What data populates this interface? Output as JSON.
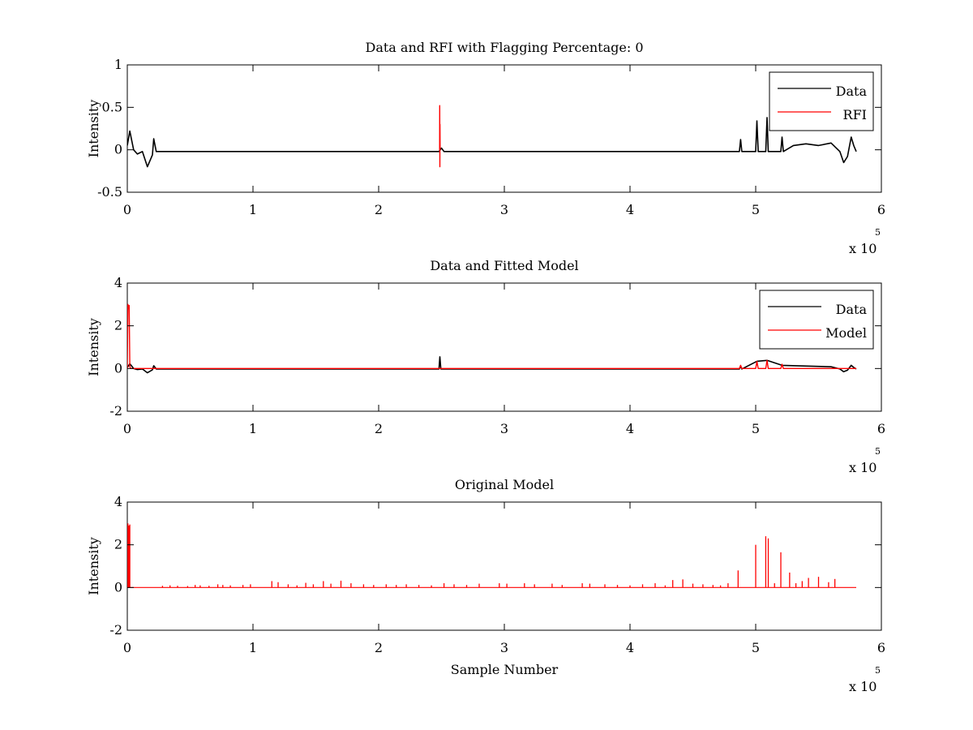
{
  "chart_data": [
    {
      "type": "line",
      "title": "Data and RFI with Flagging Percentage: 0",
      "xlabel": "",
      "ylabel": "Intensity",
      "xlim": [
        0,
        600000
      ],
      "ylim": [
        -0.5,
        1
      ],
      "xticks": [
        0,
        100000,
        200000,
        300000,
        400000,
        500000,
        600000
      ],
      "xtick_labels": [
        "0",
        "1",
        "2",
        "3",
        "4",
        "5",
        "6"
      ],
      "yticks": [
        -0.5,
        0,
        0.5,
        1
      ],
      "ytick_labels": [
        "-0.5",
        "0",
        "0.5",
        "1"
      ],
      "x_multiplier": {
        "base": "x 10",
        "exponent": "5"
      },
      "grid": false,
      "legend": "top-right",
      "series": [
        {
          "name": "Data",
          "color": "#000000",
          "x": [
            0,
            2000,
            5000,
            8000,
            12000,
            16000,
            20000,
            21000,
            23000,
            40000,
            100000,
            200000,
            248000,
            250000,
            252000,
            300000,
            400000,
            487000,
            488000,
            489000,
            500000,
            501000,
            502000,
            508000,
            509000,
            510000,
            515000,
            520000,
            521000,
            522000,
            530000,
            540000,
            550000,
            560000,
            567000,
            570000,
            573000,
            576000,
            578000,
            580000
          ],
          "y": [
            0.05,
            0.22,
            0.0,
            -0.05,
            -0.02,
            -0.2,
            -0.06,
            0.13,
            -0.02,
            -0.02,
            -0.02,
            -0.02,
            -0.02,
            0.02,
            -0.02,
            -0.02,
            -0.02,
            -0.02,
            0.12,
            -0.02,
            -0.02,
            0.34,
            -0.02,
            -0.02,
            0.38,
            -0.02,
            -0.02,
            -0.02,
            0.15,
            -0.02,
            0.05,
            0.07,
            0.05,
            0.08,
            -0.02,
            -0.15,
            -0.08,
            0.15,
            0.05,
            -0.02
          ]
        },
        {
          "name": "RFI",
          "color": "#ff0000",
          "x": [
            248500,
            248600,
            248700,
            248800,
            248900
          ],
          "y": [
            0,
            0.52,
            -0.2,
            0.3,
            0
          ]
        }
      ]
    },
    {
      "type": "line",
      "title": "Data and Fitted Model",
      "xlabel": "",
      "ylabel": "Intensity",
      "xlim": [
        0,
        600000
      ],
      "ylim": [
        -2,
        4
      ],
      "xticks": [
        0,
        100000,
        200000,
        300000,
        400000,
        500000,
        600000
      ],
      "xtick_labels": [
        "0",
        "1",
        "2",
        "3",
        "4",
        "5",
        "6"
      ],
      "yticks": [
        -2,
        0,
        2,
        4
      ],
      "ytick_labels": [
        "-2",
        "0",
        "2",
        "4"
      ],
      "x_multiplier": {
        "base": "x 10",
        "exponent": "5"
      },
      "grid": false,
      "legend": "top-right",
      "series": [
        {
          "name": "Data",
          "color": "#000000",
          "x": [
            0,
            2000,
            5000,
            8000,
            12000,
            16000,
            20000,
            21000,
            23000,
            100000,
            248000,
            248700,
            249500,
            300000,
            400000,
            487000,
            488000,
            489000,
            501000,
            509000,
            521000,
            560000,
            567000,
            570000,
            573000,
            576000,
            578000,
            580000
          ],
          "y": [
            0.05,
            0.22,
            0.0,
            -0.05,
            -0.02,
            -0.2,
            -0.06,
            0.13,
            -0.02,
            -0.02,
            -0.02,
            0.55,
            -0.02,
            -0.02,
            -0.02,
            -0.02,
            0.12,
            -0.02,
            0.34,
            0.38,
            0.15,
            0.08,
            -0.02,
            -0.15,
            -0.08,
            0.15,
            0.05,
            -0.02
          ]
        },
        {
          "name": "Model",
          "color": "#ff0000",
          "x": [
            0,
            500,
            1000,
            1500,
            2000,
            2500,
            100000,
            200000,
            300000,
            400000,
            487000,
            488000,
            489000,
            500000,
            501000,
            502000,
            508000,
            509000,
            510000,
            520000,
            521000,
            522000,
            580000
          ],
          "y": [
            0,
            3.0,
            2.8,
            2.95,
            0.1,
            0,
            0,
            0,
            0,
            0,
            0,
            0.15,
            0,
            0,
            0.33,
            0,
            0,
            0.38,
            0,
            0,
            0.2,
            0,
            0
          ]
        }
      ]
    },
    {
      "type": "line",
      "title": "Original Model",
      "xlabel": "Sample Number",
      "ylabel": "Intensity",
      "xlim": [
        0,
        600000
      ],
      "ylim": [
        -2,
        4
      ],
      "xticks": [
        0,
        100000,
        200000,
        300000,
        400000,
        500000,
        600000
      ],
      "xtick_labels": [
        "0",
        "1",
        "2",
        "3",
        "4",
        "5",
        "6"
      ],
      "yticks": [
        -2,
        0,
        2,
        4
      ],
      "ytick_labels": [
        "-2",
        "0",
        "2",
        "4"
      ],
      "x_multiplier": {
        "base": "x 10",
        "exponent": "5"
      },
      "grid": false,
      "legend": "none",
      "series": [
        {
          "color": "#ff0000",
          "baseline": 0,
          "x_end": 580000,
          "spikes": [
            [
              500,
              3.0
            ],
            [
              1200,
              2.9
            ],
            [
              2000,
              2.95
            ],
            [
              28000,
              0.08
            ],
            [
              34000,
              0.1
            ],
            [
              40000,
              0.08
            ],
            [
              48000,
              0.07
            ],
            [
              54000,
              0.12
            ],
            [
              58000,
              0.1
            ],
            [
              65000,
              0.08
            ],
            [
              72000,
              0.15
            ],
            [
              76000,
              0.12
            ],
            [
              82000,
              0.1
            ],
            [
              92000,
              0.12
            ],
            [
              98000,
              0.15
            ],
            [
              115000,
              0.3
            ],
            [
              120000,
              0.25
            ],
            [
              128000,
              0.15
            ],
            [
              135000,
              0.1
            ],
            [
              142000,
              0.22
            ],
            [
              148000,
              0.15
            ],
            [
              156000,
              0.3
            ],
            [
              162000,
              0.18
            ],
            [
              170000,
              0.32
            ],
            [
              178000,
              0.2
            ],
            [
              188000,
              0.15
            ],
            [
              196000,
              0.12
            ],
            [
              206000,
              0.15
            ],
            [
              214000,
              0.12
            ],
            [
              222000,
              0.15
            ],
            [
              232000,
              0.12
            ],
            [
              242000,
              0.1
            ],
            [
              252000,
              0.2
            ],
            [
              260000,
              0.15
            ],
            [
              270000,
              0.12
            ],
            [
              280000,
              0.18
            ],
            [
              296000,
              0.2
            ],
            [
              302000,
              0.18
            ],
            [
              316000,
              0.2
            ],
            [
              324000,
              0.15
            ],
            [
              338000,
              0.18
            ],
            [
              346000,
              0.12
            ],
            [
              362000,
              0.2
            ],
            [
              368000,
              0.18
            ],
            [
              380000,
              0.15
            ],
            [
              390000,
              0.12
            ],
            [
              400000,
              0.1
            ],
            [
              410000,
              0.15
            ],
            [
              420000,
              0.2
            ],
            [
              428000,
              0.1
            ],
            [
              434000,
              0.35
            ],
            [
              442000,
              0.38
            ],
            [
              450000,
              0.18
            ],
            [
              458000,
              0.15
            ],
            [
              466000,
              0.12
            ],
            [
              472000,
              0.1
            ],
            [
              478000,
              0.2
            ],
            [
              486000,
              0.8
            ],
            [
              500000,
              2.0
            ],
            [
              508000,
              2.4
            ],
            [
              510000,
              2.3
            ],
            [
              515000,
              0.2
            ],
            [
              520000,
              1.65
            ],
            [
              527000,
              0.7
            ],
            [
              532000,
              0.2
            ],
            [
              537000,
              0.3
            ],
            [
              542000,
              0.45
            ],
            [
              550000,
              0.5
            ],
            [
              558000,
              0.25
            ],
            [
              563000,
              0.4
            ]
          ]
        }
      ]
    }
  ]
}
